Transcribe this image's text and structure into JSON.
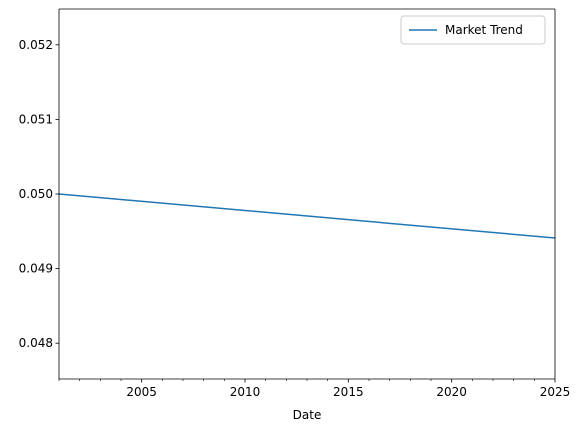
{
  "chart_data": {
    "type": "line",
    "title": "",
    "xlabel": "Date",
    "ylabel": "",
    "xlim": [
      2001,
      2025
    ],
    "ylim": [
      0.04752,
      0.05248
    ],
    "x_major_ticks": [
      2005,
      2010,
      2015,
      2020,
      2025
    ],
    "x_minor_step": 1,
    "y_ticks": [
      0.048,
      0.049,
      0.05,
      0.051,
      0.052
    ],
    "y_tick_labels": [
      "0.048",
      "0.049",
      "0.050",
      "0.051",
      "0.052"
    ],
    "grid": false,
    "legend_position": "upper right",
    "series": [
      {
        "name": "Market Trend",
        "color": "#1f77b4",
        "x": [
          2001,
          2025
        ],
        "y": [
          0.05,
          0.04941
        ]
      }
    ]
  }
}
